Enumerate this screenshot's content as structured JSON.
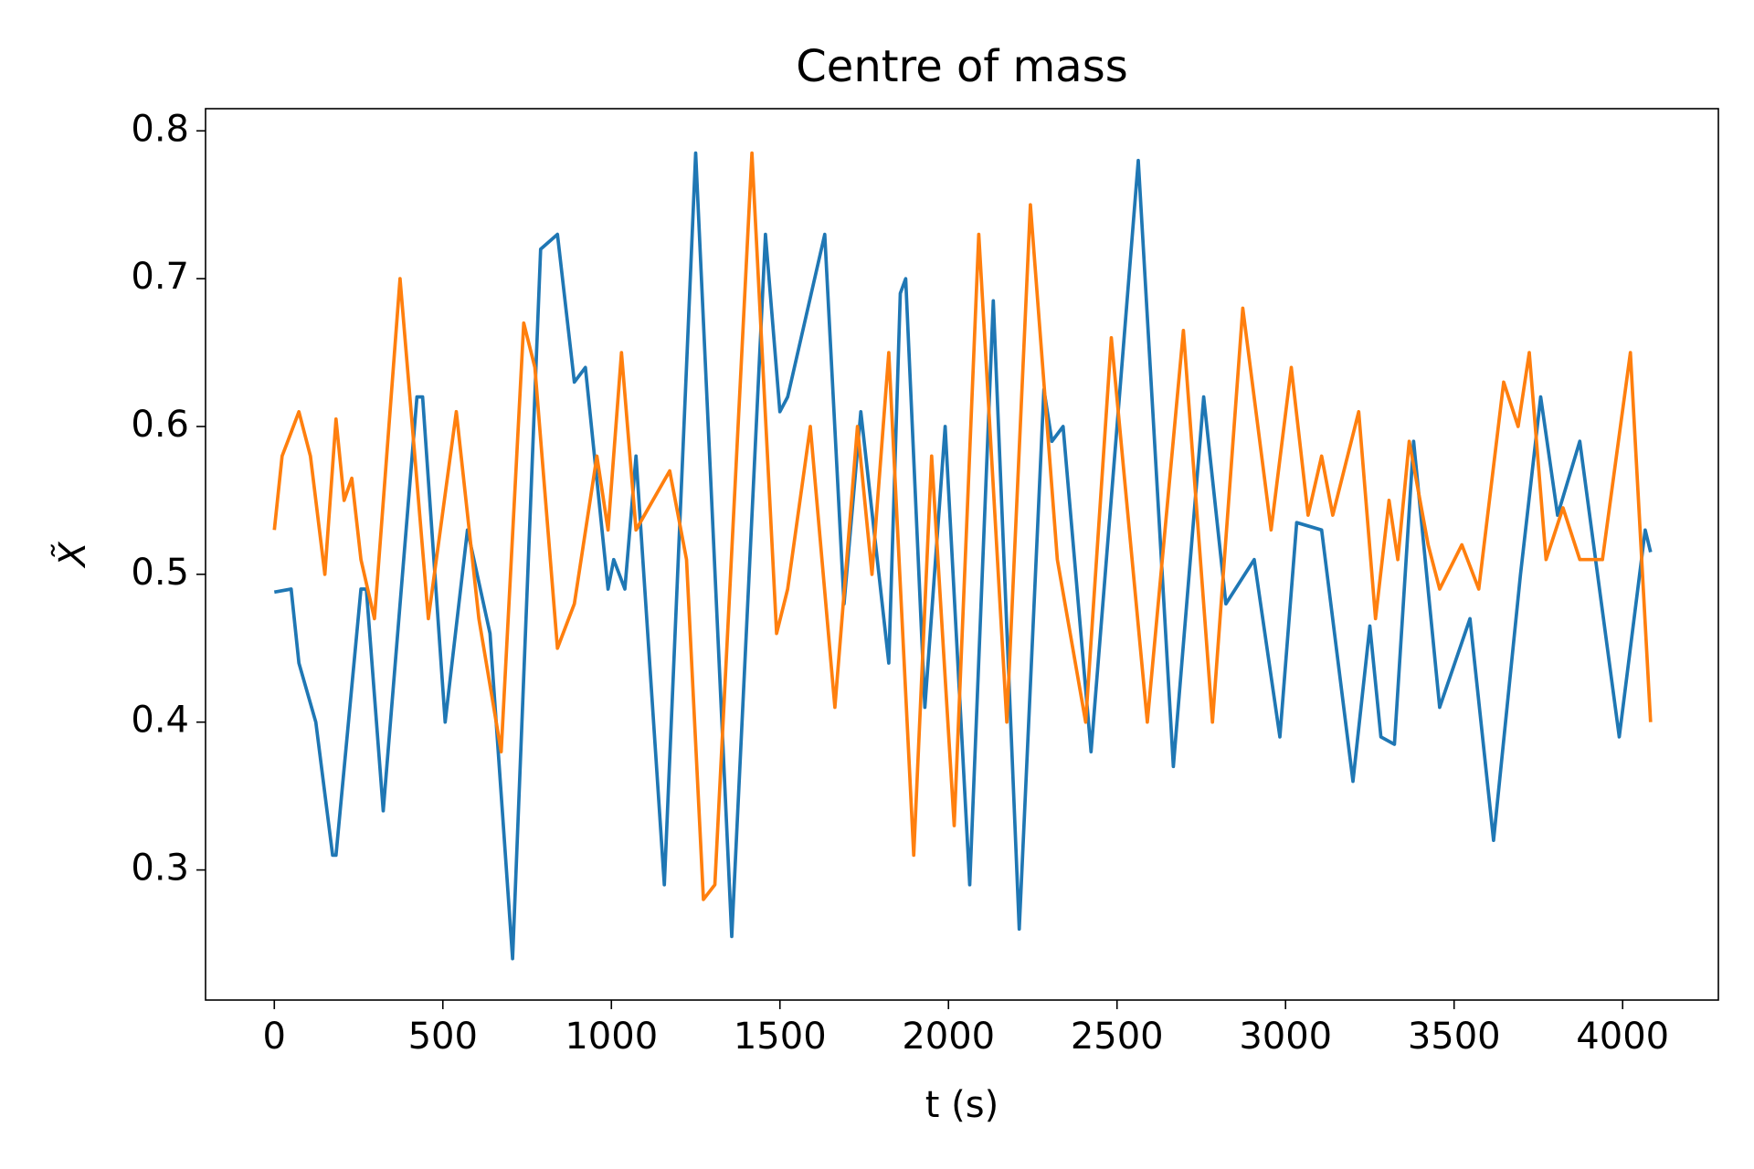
{
  "chart_data": {
    "type": "line",
    "title": "Centre of mass",
    "x_label": "t (s)",
    "y_label": "X̃",
    "xlim": [
      -204,
      4284
    ],
    "ylim": [
      0.212,
      0.815
    ],
    "xticks": [
      0,
      500,
      1000,
      1500,
      2000,
      2500,
      3000,
      3500,
      4000
    ],
    "yticks": [
      0.3,
      0.4,
      0.5,
      0.6,
      0.7,
      0.8
    ],
    "grid": false,
    "series": [
      {
        "color": "#1f77b4",
        "x": [
          0,
          50,
          73,
          123,
          173,
          183,
          257,
          273,
          323,
          423,
          440,
          507,
          573,
          640,
          707,
          790,
          840,
          890,
          923,
          990,
          1007,
          1040,
          1073,
          1157,
          1250,
          1357,
          1457,
          1500,
          1523,
          1633,
          1690,
          1740,
          1823,
          1857,
          1873,
          1930,
          1990,
          2063,
          2133,
          2210,
          2283,
          2307,
          2340,
          2423,
          2563,
          2667,
          2757,
          2823,
          2907,
          2983,
          3033,
          3107,
          3200,
          3250,
          3283,
          3323,
          3380,
          3457,
          3547,
          3617,
          3697,
          3757,
          3807,
          3873,
          3990,
          4067,
          4083
        ],
        "values": [
          0.488,
          0.49,
          0.44,
          0.4,
          0.31,
          0.31,
          0.49,
          0.49,
          0.34,
          0.62,
          0.62,
          0.4,
          0.53,
          0.46,
          0.24,
          0.72,
          0.73,
          0.63,
          0.64,
          0.49,
          0.51,
          0.49,
          0.58,
          0.29,
          0.785,
          0.255,
          0.73,
          0.61,
          0.62,
          0.73,
          0.48,
          0.61,
          0.44,
          0.69,
          0.7,
          0.41,
          0.6,
          0.29,
          0.685,
          0.26,
          0.625,
          0.59,
          0.6,
          0.38,
          0.78,
          0.37,
          0.62,
          0.48,
          0.51,
          0.39,
          0.535,
          0.53,
          0.36,
          0.465,
          0.39,
          0.385,
          0.59,
          0.41,
          0.47,
          0.32,
          0.5,
          0.62,
          0.54,
          0.59,
          0.39,
          0.53,
          0.515
        ]
      },
      {
        "color": "#ff7f0e",
        "x": [
          0,
          23,
          40,
          73,
          107,
          150,
          183,
          207,
          230,
          257,
          297,
          373,
          457,
          540,
          607,
          673,
          740,
          773,
          840,
          890,
          957,
          990,
          1030,
          1073,
          1123,
          1173,
          1223,
          1273,
          1307,
          1417,
          1490,
          1523,
          1590,
          1663,
          1730,
          1773,
          1823,
          1897,
          1950,
          2017,
          2090,
          2173,
          2243,
          2323,
          2407,
          2483,
          2590,
          2697,
          2783,
          2873,
          2957,
          3017,
          3067,
          3107,
          3140,
          3217,
          3267,
          3307,
          3333,
          3367,
          3423,
          3457,
          3523,
          3573,
          3647,
          3690,
          3723,
          3773,
          3823,
          3873,
          3940,
          4023,
          4083
        ],
        "values": [
          0.53,
          0.58,
          0.59,
          0.61,
          0.58,
          0.5,
          0.605,
          0.55,
          0.565,
          0.51,
          0.47,
          0.7,
          0.47,
          0.61,
          0.47,
          0.38,
          0.67,
          0.64,
          0.45,
          0.48,
          0.58,
          0.53,
          0.65,
          0.53,
          0.55,
          0.57,
          0.51,
          0.28,
          0.29,
          0.785,
          0.46,
          0.49,
          0.6,
          0.41,
          0.6,
          0.5,
          0.65,
          0.31,
          0.58,
          0.33,
          0.73,
          0.4,
          0.75,
          0.51,
          0.4,
          0.66,
          0.4,
          0.665,
          0.4,
          0.68,
          0.53,
          0.64,
          0.54,
          0.58,
          0.54,
          0.61,
          0.47,
          0.55,
          0.51,
          0.59,
          0.52,
          0.49,
          0.52,
          0.49,
          0.63,
          0.6,
          0.65,
          0.51,
          0.545,
          0.51,
          0.51,
          0.65,
          0.4
        ]
      }
    ]
  }
}
